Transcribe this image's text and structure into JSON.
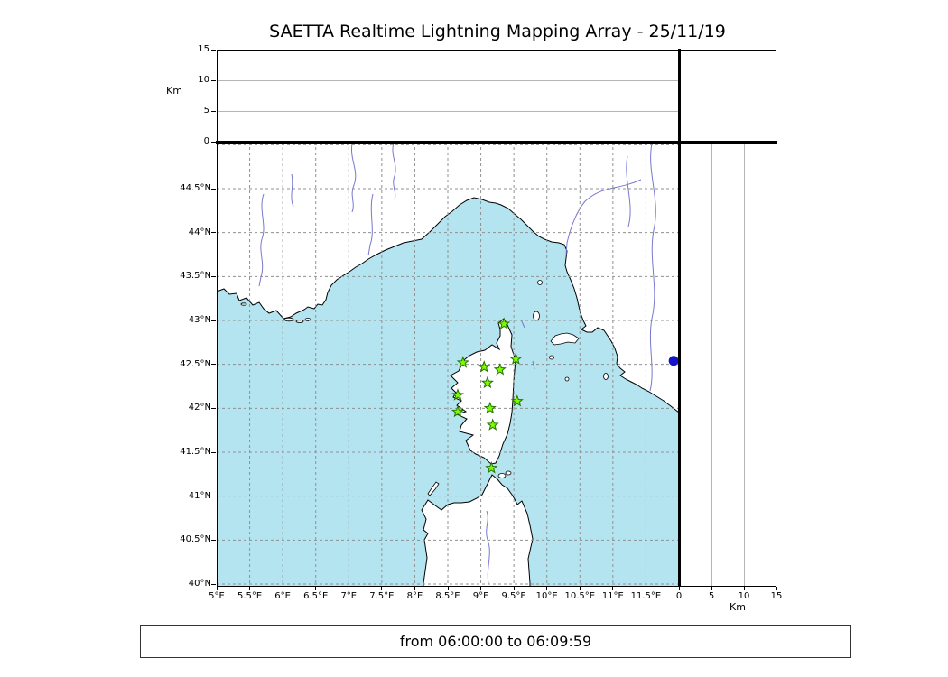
{
  "chart_data": {
    "type": "scatter",
    "title": "SAETTA Realtime Lightning Mapping Array - 25/11/19",
    "time_window_label": "from 06:00:00 to 06:09:59",
    "colors": {
      "sea": "#b4e4f0",
      "land": "#ffffff",
      "coastline": "#000000",
      "river": "#7878d0",
      "grid": "#909090",
      "station_fill": "#7cfc00",
      "station_stroke": "#267300",
      "event_dot": "#1414cc"
    },
    "map_panel": {
      "lon_range": [
        5,
        12
      ],
      "lat_range": [
        39.97,
        45.03
      ],
      "grid_style": "dashed",
      "lon_ticks": [
        {
          "value": 5,
          "label": "5°E"
        },
        {
          "value": 5.5,
          "label": "5.5°E"
        },
        {
          "value": 6,
          "label": "6°E"
        },
        {
          "value": 6.5,
          "label": "6.5°E"
        },
        {
          "value": 7,
          "label": "7°E"
        },
        {
          "value": 7.5,
          "label": "7.5°E"
        },
        {
          "value": 8,
          "label": "8°E"
        },
        {
          "value": 8.5,
          "label": "8.5°E"
        },
        {
          "value": 9,
          "label": "9°E"
        },
        {
          "value": 9.5,
          "label": "9.5°E"
        },
        {
          "value": 10,
          "label": "10°E"
        },
        {
          "value": 10.5,
          "label": "10.5°E"
        },
        {
          "value": 11,
          "label": "11°E"
        },
        {
          "value": 11.5,
          "label": "11.5°E"
        }
      ],
      "lat_ticks": [
        {
          "value": 44.5,
          "label": "44.5°N"
        },
        {
          "value": 44,
          "label": "44°N"
        },
        {
          "value": 43.5,
          "label": "43.5°N"
        },
        {
          "value": 43,
          "label": "43°N"
        },
        {
          "value": 42.5,
          "label": "42.5°N"
        },
        {
          "value": 42,
          "label": "42°N"
        },
        {
          "value": 41.5,
          "label": "41.5°N"
        },
        {
          "value": 41,
          "label": "41°N"
        },
        {
          "value": 40.5,
          "label": "40.5°N"
        },
        {
          "value": 40,
          "label": "40°N"
        }
      ],
      "lon_gridlines": [
        5.5,
        6,
        6.5,
        7,
        7.5,
        8,
        8.5,
        9,
        9.5,
        10,
        10.5,
        11,
        11.5
      ],
      "lat_gridlines": [
        40,
        40.5,
        41,
        41.5,
        42,
        42.5,
        43,
        43.5,
        44,
        44.5,
        45
      ]
    },
    "altitude_panel_top": {
      "axis_label": "Km",
      "range_km": [
        0,
        15
      ],
      "ticks": [
        {
          "value": 15,
          "label": "15"
        },
        {
          "value": 10,
          "label": "10"
        },
        {
          "value": 5,
          "label": "5"
        },
        {
          "value": 0,
          "label": "0"
        }
      ],
      "gridlines": [
        5,
        10
      ]
    },
    "altitude_panel_right": {
      "axis_label": "Km",
      "range_km": [
        0,
        15
      ],
      "ticks": [
        {
          "value": 0,
          "label": "0"
        },
        {
          "value": 5,
          "label": "5"
        },
        {
          "value": 10,
          "label": "10"
        },
        {
          "value": 15,
          "label": "15"
        }
      ],
      "gridlines": [
        5,
        10
      ]
    },
    "stations": [
      {
        "lon": 9.35,
        "lat": 42.96
      },
      {
        "lon": 8.73,
        "lat": 42.52
      },
      {
        "lon": 9.05,
        "lat": 42.47
      },
      {
        "lon": 9.29,
        "lat": 42.44
      },
      {
        "lon": 9.53,
        "lat": 42.56
      },
      {
        "lon": 9.1,
        "lat": 42.29
      },
      {
        "lon": 8.65,
        "lat": 42.15
      },
      {
        "lon": 9.55,
        "lat": 42.08
      },
      {
        "lon": 8.65,
        "lat": 41.96
      },
      {
        "lon": 9.14,
        "lat": 42.0
      },
      {
        "lon": 9.18,
        "lat": 41.81
      },
      {
        "lon": 9.16,
        "lat": 41.32
      }
    ],
    "events": [
      {
        "lon": 11.92,
        "lat": 42.54
      }
    ]
  }
}
